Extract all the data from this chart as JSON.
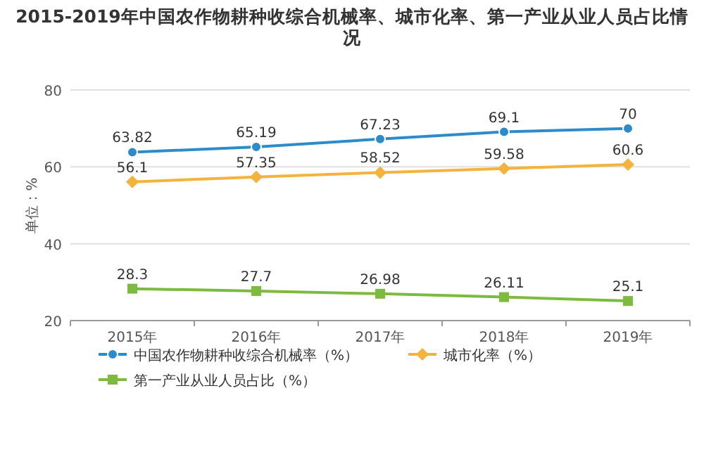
{
  "chart_data": {
    "type": "line",
    "title": "2015-2019年中国农作物耕种收综合机械率、城市化率、第一产业从业人员占比情况",
    "ylabel": "单位：%",
    "categories": [
      "2015年",
      "2016年",
      "2017年",
      "2018年",
      "2019年"
    ],
    "series": [
      {
        "name": "中国农作物耕种收综合机械率（%）",
        "color": "#2e8bc9",
        "marker": "circle",
        "values": [
          63.82,
          65.19,
          67.23,
          69.1,
          70
        ]
      },
      {
        "name": "城市化率（%）",
        "color": "#f3b33d",
        "marker": "diamond",
        "values": [
          56.1,
          57.35,
          58.52,
          59.58,
          60.6
        ]
      },
      {
        "name": "第一产业从业人员占比（%）",
        "color": "#7cbb3f",
        "marker": "square",
        "values": [
          28.3,
          27.7,
          26.98,
          26.11,
          25.1
        ]
      }
    ],
    "ylim": [
      20,
      80
    ],
    "yticks": [
      20,
      40,
      60,
      80
    ],
    "grid": "y",
    "legend": "bottom",
    "data_labels": true
  }
}
